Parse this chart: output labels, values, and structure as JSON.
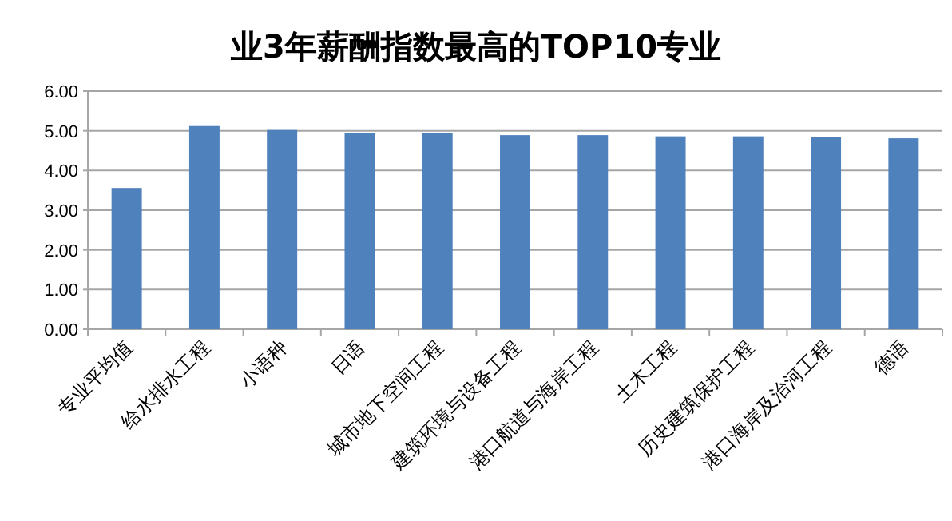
{
  "chart_data": {
    "type": "bar",
    "title": "业3年薪酬指数最高的TOP10专业",
    "categories": [
      "专业平均值",
      "给水排水工程",
      "小语种",
      "日语",
      "城市地下空间工程",
      "建筑环境与设备工程",
      "港口航道与海岸工程",
      "土木工程",
      "历史建筑保护工程",
      "港口海岸及治河工程",
      "德语"
    ],
    "values": [
      3.56,
      5.12,
      5.02,
      4.94,
      4.94,
      4.89,
      4.89,
      4.86,
      4.86,
      4.85,
      4.81
    ],
    "color": "#4f81bd",
    "ylim": [
      0,
      6
    ],
    "yticks": [
      {
        "value": 0,
        "label": "0.00"
      },
      {
        "value": 1,
        "label": "1.00"
      },
      {
        "value": 2,
        "label": "2.00"
      },
      {
        "value": 3,
        "label": "3.00"
      },
      {
        "value": 4,
        "label": "4.00"
      },
      {
        "value": 5,
        "label": "5.00"
      },
      {
        "value": 6,
        "label": "6.00"
      }
    ],
    "grid": "y"
  }
}
